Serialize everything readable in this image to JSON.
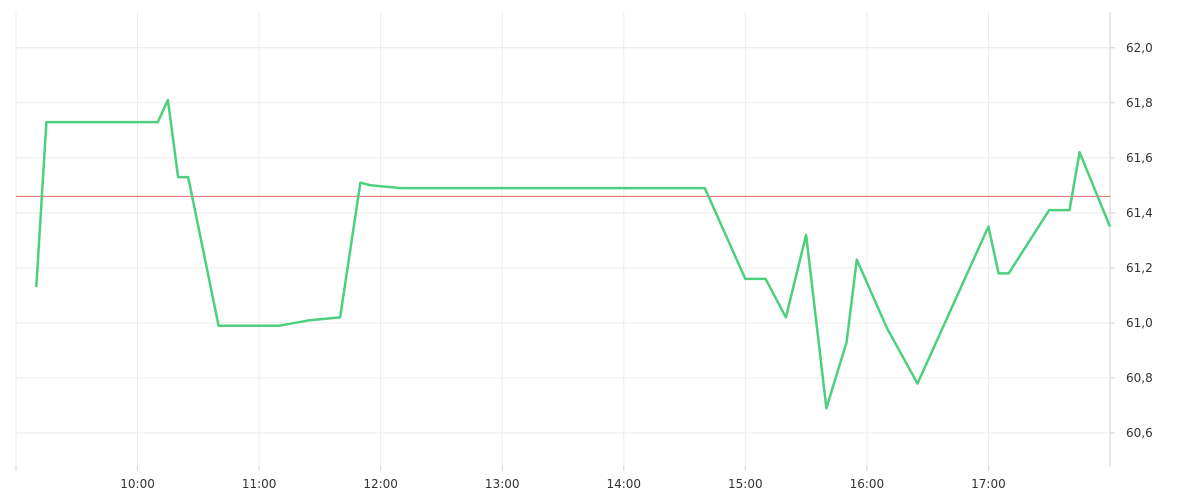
{
  "chart_data": {
    "type": "line",
    "title": "",
    "xlabel": "",
    "ylabel": "",
    "x_ticks": [
      "10:00",
      "11:00",
      "12:00",
      "13:00",
      "14:00",
      "15:00",
      "16:00",
      "17:00"
    ],
    "y_ticks": [
      "60,6",
      "60,8",
      "61,0",
      "61,2",
      "61,4",
      "61,6",
      "61,8",
      "62,0"
    ],
    "xlim": [
      "09:00",
      "18:00"
    ],
    "ylim": [
      60.48,
      62.13
    ],
    "grid": true,
    "reference_line": {
      "value": 61.46,
      "color": "#e06666"
    },
    "series": [
      {
        "color": "#4cd07d",
        "points": [
          [
            "09:10",
            61.13
          ],
          [
            "09:15",
            61.73
          ],
          [
            "10:10",
            61.73
          ],
          [
            "10:15",
            61.81
          ],
          [
            "10:20",
            61.53
          ],
          [
            "10:25",
            61.53
          ],
          [
            "10:40",
            60.99
          ],
          [
            "11:10",
            60.99
          ],
          [
            "11:25",
            61.01
          ],
          [
            "11:40",
            61.02
          ],
          [
            "11:50",
            61.51
          ],
          [
            "11:55",
            61.5
          ],
          [
            "12:10",
            61.49
          ],
          [
            "14:40",
            61.49
          ],
          [
            "15:00",
            61.16
          ],
          [
            "15:10",
            61.16
          ],
          [
            "15:20",
            61.02
          ],
          [
            "15:30",
            61.32
          ],
          [
            "15:40",
            60.69
          ],
          [
            "15:50",
            60.93
          ],
          [
            "15:55",
            61.23
          ],
          [
            "16:10",
            60.98
          ],
          [
            "16:25",
            60.78
          ],
          [
            "17:00",
            61.35
          ],
          [
            "17:05",
            61.18
          ],
          [
            "17:10",
            61.18
          ],
          [
            "17:30",
            61.41
          ],
          [
            "17:40",
            61.41
          ],
          [
            "17:45",
            61.62
          ],
          [
            "18:00",
            61.35
          ]
        ]
      }
    ]
  }
}
